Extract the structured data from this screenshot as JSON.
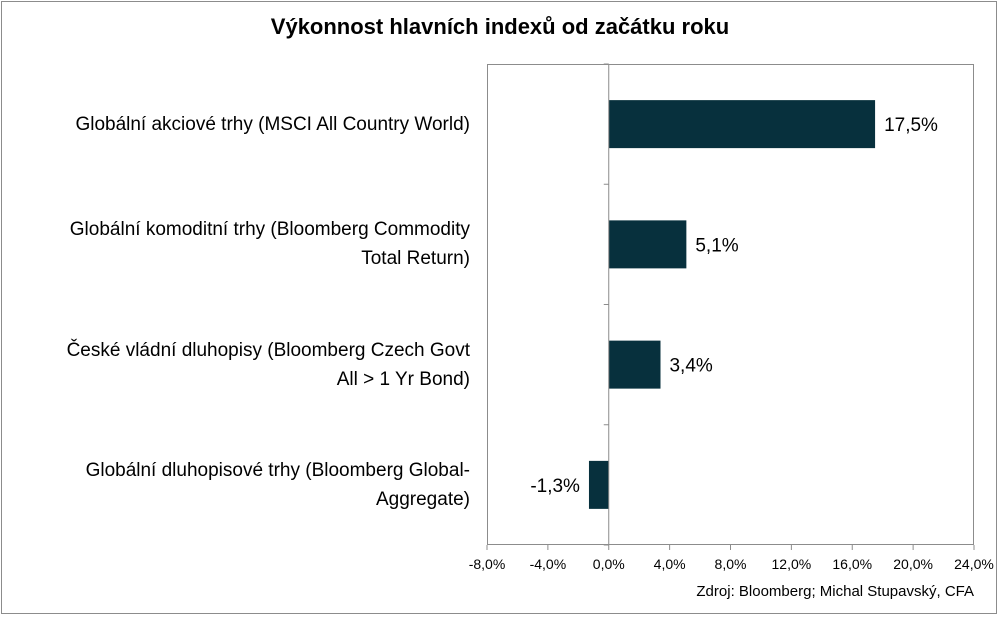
{
  "chart_data": {
    "type": "bar",
    "orientation": "horizontal",
    "title": "Výkonnost hlavních indexů od začátku roku",
    "categories": [
      [
        "Globální akciové trhy (MSCI All Country World)"
      ],
      [
        "Globální komoditní trhy (Bloomberg Commodity",
        "Total Return)"
      ],
      [
        "České vládní dluhopisy (Bloomberg Czech Govt",
        "All > 1 Yr Bond)"
      ],
      [
        "Globální dluhopisové trhy (Bloomberg Global-",
        "Aggregate)"
      ]
    ],
    "values": [
      17.5,
      5.1,
      3.4,
      -1.3
    ],
    "data_labels": [
      "17,5%",
      "5,1%",
      "3,4%",
      "-1,3%"
    ],
    "xlim": [
      -8,
      24
    ],
    "x_ticks": [
      -8,
      -4,
      0,
      4,
      8,
      12,
      16,
      20,
      24
    ],
    "x_tick_labels": [
      "-8,0%",
      "-4,0%",
      "0,0%",
      "4,0%",
      "8,0%",
      "12,0%",
      "16,0%",
      "20,0%",
      "24,0%"
    ],
    "bar_color": "#07303d",
    "grid": false,
    "legend": "none"
  },
  "source": "Zdroj: Bloomberg; Michal Stupavský, CFA"
}
